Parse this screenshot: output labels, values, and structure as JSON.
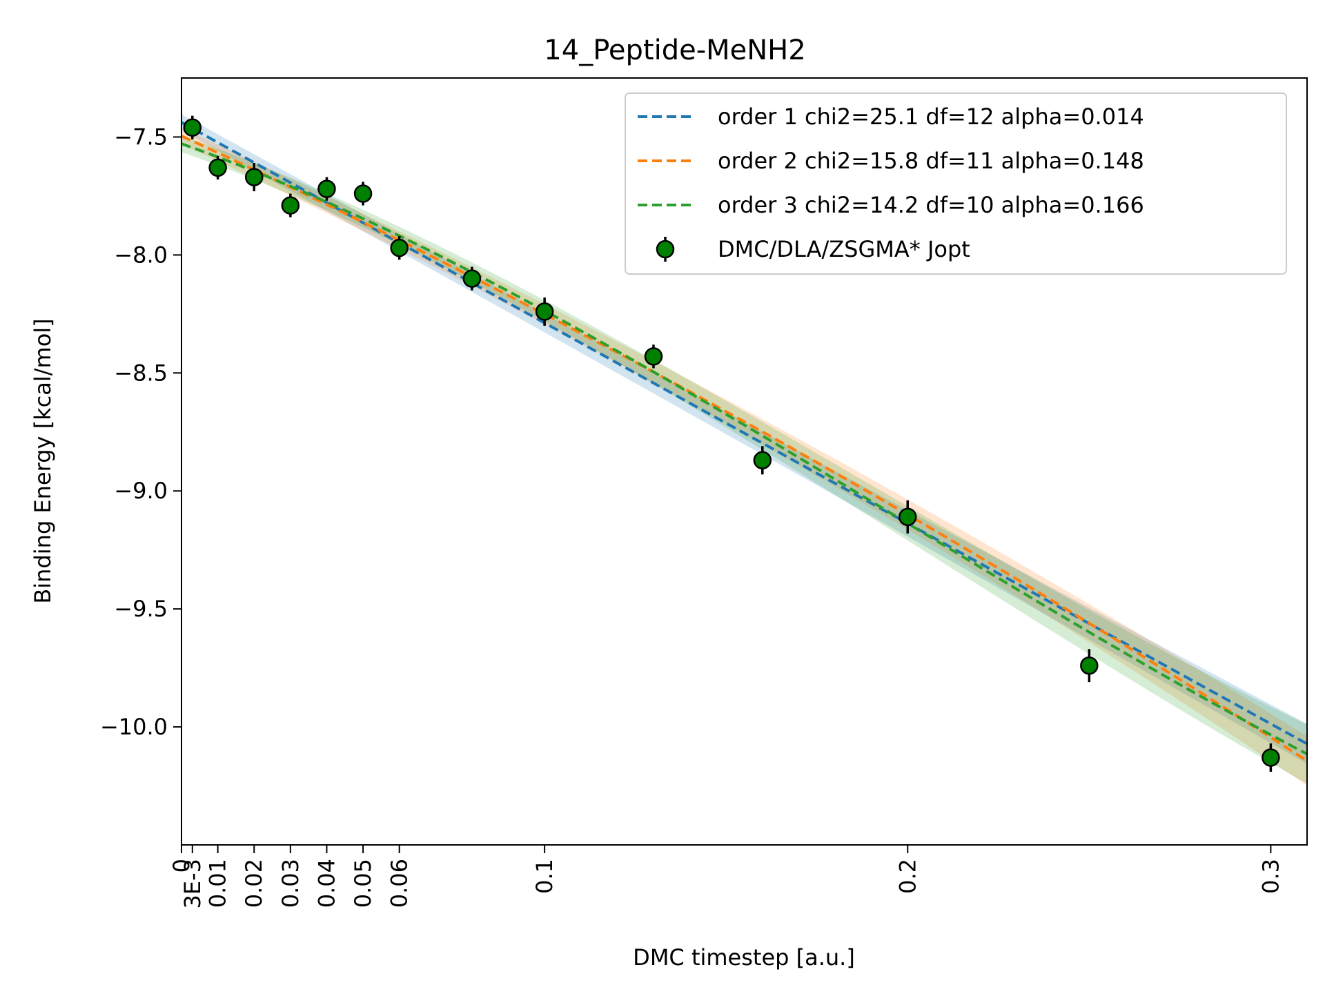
{
  "chart_data": {
    "type": "scatter",
    "title": "14_Peptide-MeNH2",
    "xlabel": "DMC timestep [a.u.]",
    "ylabel": "Binding Energy [kcal/mol]",
    "xlim": [
      0,
      0.31
    ],
    "ylim": [
      -10.5,
      -7.25
    ],
    "x_ticks": [
      0,
      0.003,
      0.01,
      0.02,
      0.03,
      0.04,
      0.05,
      0.06,
      0.1,
      0.2,
      0.3
    ],
    "x_tick_labels": [
      "0",
      "3E-3",
      "0.01",
      "0.02",
      "0.03",
      "0.04",
      "0.05",
      "0.06",
      "0.1",
      "0.2",
      "0.3"
    ],
    "y_ticks": [
      -7.5,
      -8.0,
      -8.5,
      -9.0,
      -9.5,
      -10.0
    ],
    "y_tick_labels": [
      "−7.5",
      "−8.0",
      "−8.5",
      "−9.0",
      "−9.5",
      "−10.0"
    ],
    "legend_position": "top-right",
    "grid": false,
    "points": {
      "name": "DMC/DLA/ZSGMA* Jopt",
      "color": "#008000",
      "x": [
        0.003,
        0.01,
        0.02,
        0.03,
        0.04,
        0.05,
        0.06,
        0.08,
        0.1,
        0.13,
        0.16,
        0.2,
        0.25,
        0.3
      ],
      "y": [
        -7.46,
        -7.63,
        -7.67,
        -7.79,
        -7.72,
        -7.74,
        -7.97,
        -8.1,
        -8.24,
        -8.43,
        -8.87,
        -9.11,
        -9.74,
        -10.13
      ],
      "err": [
        0.05,
        0.05,
        0.06,
        0.05,
        0.05,
        0.05,
        0.05,
        0.05,
        0.06,
        0.05,
        0.06,
        0.07,
        0.07,
        0.06
      ]
    },
    "series": [
      {
        "name": "order 1 chi2=25.1 df=12 alpha=0.014",
        "color": "#1f77b4",
        "order": 1,
        "coeffs": [
          -7.4385,
          -8.4947
        ]
      },
      {
        "name": "order 2 chi2=15.8 df=11 alpha=0.148",
        "color": "#ff7f0e",
        "order": 2,
        "coeffs": [
          -7.4957,
          -7.0817,
          -4.7104
        ]
      },
      {
        "name": "order 3 chi2=14.2 df=10 alpha=0.166",
        "color": "#2ca02c",
        "order": 3,
        "coeffs": [
          -7.5285,
          -5.4483,
          -19.6,
          33.1
        ]
      }
    ]
  }
}
